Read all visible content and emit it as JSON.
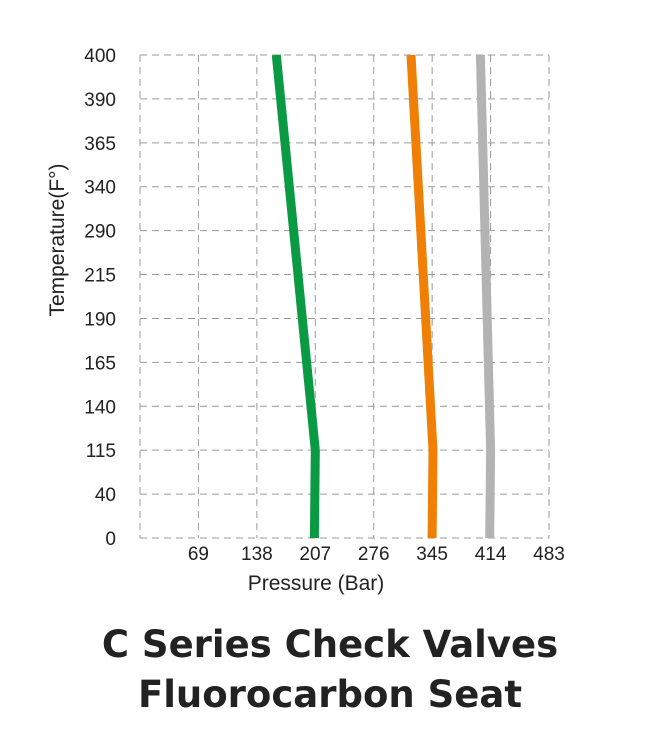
{
  "chart_data": {
    "type": "line",
    "title": "",
    "xlabel": "Pressure (Bar)",
    "ylabel": "Temperature(F°)",
    "x_ticks": [
      "69",
      "138",
      "207",
      "276",
      "345",
      "414",
      "483"
    ],
    "y_ticks": [
      "0",
      "40",
      "115",
      "140",
      "165",
      "190",
      "215",
      "290",
      "340",
      "365",
      "390",
      "400"
    ],
    "xlim": [
      0,
      483
    ],
    "grid": true,
    "series": [
      {
        "color": "#0a9a43",
        "points": [
          {
            "x": 206,
            "y": "0"
          },
          {
            "x": 207,
            "y": "115"
          },
          {
            "x": 161,
            "y": "400"
          }
        ]
      },
      {
        "color": "#f07f06",
        "points": [
          {
            "x": 345,
            "y": "0"
          },
          {
            "x": 346,
            "y": "115"
          },
          {
            "x": 320,
            "y": "400"
          }
        ]
      },
      {
        "color": "#b3b3b3",
        "points": [
          {
            "x": 413,
            "y": "0"
          },
          {
            "x": 414,
            "y": "115"
          },
          {
            "x": 402,
            "y": "400"
          }
        ]
      }
    ]
  },
  "caption": {
    "line1": "C Series Check Valves",
    "line2": "Fluorocarbon Seat"
  }
}
